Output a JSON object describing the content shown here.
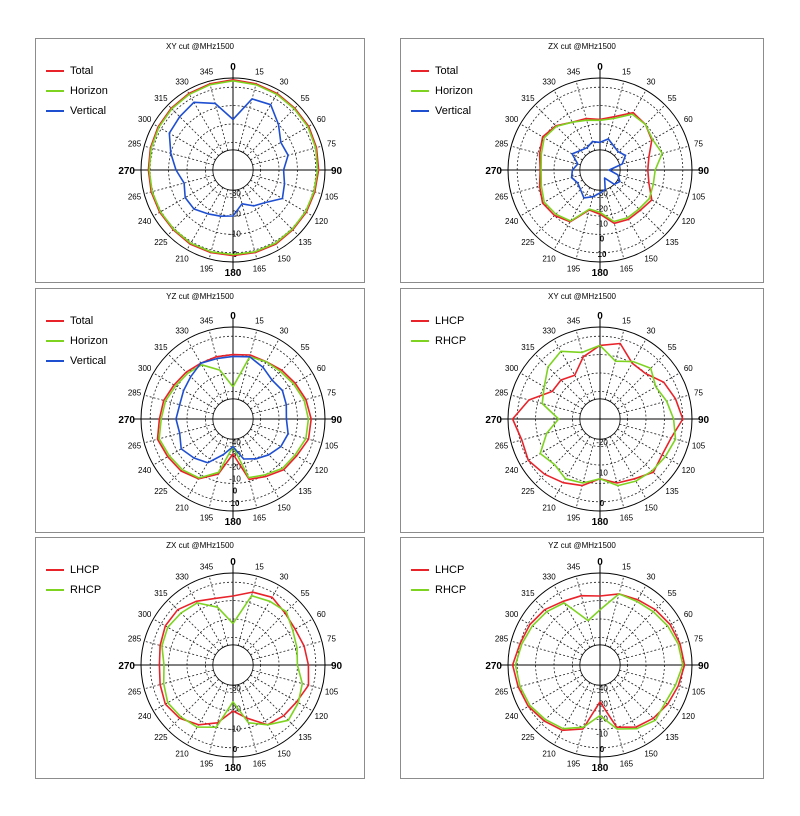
{
  "colors": {
    "Total": "#e8232a",
    "Horizon": "#7ed321",
    "Vertical": "#1f4fd1",
    "LHCP": "#e8232a",
    "RHCP": "#7ed321"
  },
  "angle_labels": [
    "0",
    "15",
    "30",
    "55",
    "60",
    "75",
    "90",
    "105",
    "120",
    "135",
    "150",
    "165",
    "180",
    "195",
    "210",
    "225",
    "240",
    "265",
    "270",
    "285",
    "300",
    "315",
    "330",
    "345"
  ],
  "chart_data": [
    {
      "type": "polar",
      "title": "XY cut @MHz1500",
      "radial_ticks": [
        "-30",
        "-20",
        "-10",
        "0"
      ],
      "series": [
        {
          "name": "Total",
          "values": [
            0.98,
            0.97,
            0.96,
            0.95,
            0.95,
            0.94,
            0.93,
            0.92,
            0.92,
            0.92,
            0.93,
            0.93,
            0.93,
            0.93,
            0.93,
            0.92,
            0.92,
            0.92,
            0.92,
            0.93,
            0.94,
            0.95,
            0.96,
            0.97
          ]
        },
        {
          "name": "Horizon",
          "values": [
            0.97,
            0.96,
            0.95,
            0.94,
            0.94,
            0.93,
            0.92,
            0.91,
            0.91,
            0.91,
            0.92,
            0.92,
            0.92,
            0.92,
            0.92,
            0.91,
            0.91,
            0.91,
            0.91,
            0.92,
            0.93,
            0.94,
            0.95,
            0.96
          ]
        },
        {
          "name": "Vertical",
          "values": [
            0.55,
            0.8,
            0.82,
            0.7,
            0.6,
            0.62,
            0.55,
            0.58,
            0.62,
            0.5,
            0.45,
            0.38,
            0.5,
            0.52,
            0.55,
            0.6,
            0.6,
            0.55,
            0.62,
            0.7,
            0.8,
            0.82,
            0.85,
            0.75
          ]
        }
      ]
    },
    {
      "type": "polar",
      "title": "ZX cut @MHz1500",
      "radial_ticks": [
        "-30",
        "-20",
        "-10",
        "0",
        "10"
      ],
      "series": [
        {
          "name": "Total",
          "values": [
            0.55,
            0.6,
            0.72,
            0.7,
            0.65,
            0.55,
            0.52,
            0.55,
            0.65,
            0.62,
            0.62,
            0.6,
            0.48,
            0.45,
            0.65,
            0.7,
            0.72,
            0.68,
            0.65,
            0.68,
            0.72,
            0.68,
            0.6,
            0.58
          ]
        },
        {
          "name": "Horizon",
          "values": [
            0.54,
            0.58,
            0.7,
            0.7,
            0.66,
            0.7,
            0.6,
            0.6,
            0.62,
            0.6,
            0.6,
            0.58,
            0.46,
            0.44,
            0.64,
            0.68,
            0.7,
            0.66,
            0.64,
            0.66,
            0.7,
            0.67,
            0.6,
            0.56
          ]
        },
        {
          "name": "Vertical",
          "values": [
            0.3,
            0.35,
            0.3,
            0.28,
            0.32,
            0.25,
            0.1,
            0.2,
            0.25,
            0.22,
            0.1,
            0.22,
            0.25,
            0.3,
            0.35,
            0.3,
            0.28,
            0.32,
            0.3,
            0.25,
            0.35,
            0.3,
            0.28,
            0.32
          ]
        }
      ]
    },
    {
      "type": "polar",
      "title": "YZ cut @MHz1500",
      "radial_ticks": [
        "-40",
        "-30",
        "-20",
        "-10",
        "0",
        "10"
      ],
      "series": [
        {
          "name": "Total",
          "values": [
            0.7,
            0.72,
            0.72,
            0.75,
            0.78,
            0.82,
            0.85,
            0.85,
            0.8,
            0.78,
            0.72,
            0.68,
            0.38,
            0.62,
            0.75,
            0.8,
            0.82,
            0.85,
            0.8,
            0.78,
            0.74,
            0.72,
            0.7,
            0.7
          ]
        },
        {
          "name": "Horizon",
          "values": [
            0.35,
            0.7,
            0.72,
            0.73,
            0.76,
            0.8,
            0.82,
            0.82,
            0.78,
            0.76,
            0.7,
            0.66,
            0.3,
            0.6,
            0.74,
            0.78,
            0.8,
            0.83,
            0.78,
            0.76,
            0.72,
            0.7,
            0.68,
            0.55
          ]
        },
        {
          "name": "Vertical",
          "values": [
            0.68,
            0.7,
            0.65,
            0.6,
            0.62,
            0.6,
            0.58,
            0.62,
            0.6,
            0.55,
            0.5,
            0.45,
            0.3,
            0.4,
            0.55,
            0.6,
            0.65,
            0.6,
            0.62,
            0.6,
            0.62,
            0.65,
            0.7,
            0.68
          ]
        }
      ]
    },
    {
      "type": "polar",
      "title": "XY cut @MHz1500",
      "radial_ticks": [
        "-20",
        "-10",
        "0"
      ],
      "series": [
        {
          "name": "LHCP",
          "values": [
            0.8,
            0.85,
            0.7,
            0.7,
            0.8,
            0.85,
            0.9,
            0.8,
            0.78,
            0.82,
            0.75,
            0.72,
            0.65,
            0.75,
            0.8,
            0.85,
            0.9,
            0.88,
            0.95,
            0.8,
            0.6,
            0.6,
            0.55,
            0.7
          ]
        },
        {
          "name": "RHCP",
          "values": [
            0.8,
            0.65,
            0.72,
            0.78,
            0.7,
            0.75,
            0.8,
            0.85,
            0.82,
            0.8,
            0.78,
            0.75,
            0.65,
            0.72,
            0.75,
            0.7,
            0.75,
            0.6,
            0.45,
            0.65,
            0.7,
            0.8,
            0.85,
            0.75
          ]
        }
      ]
    },
    {
      "type": "polar",
      "title": "ZX cut @MHz1500",
      "radial_ticks": [
        "-30",
        "-20",
        "-10",
        "0"
      ],
      "series": [
        {
          "name": "LHCP",
          "values": [
            0.75,
            0.82,
            0.85,
            0.8,
            0.78,
            0.8,
            0.82,
            0.85,
            0.8,
            0.78,
            0.75,
            0.6,
            0.5,
            0.65,
            0.75,
            0.82,
            0.85,
            0.82,
            0.8,
            0.82,
            0.85,
            0.85,
            0.8,
            0.75
          ]
        },
        {
          "name": "RHCP",
          "values": [
            0.45,
            0.78,
            0.8,
            0.82,
            0.75,
            0.72,
            0.7,
            0.78,
            0.82,
            0.85,
            0.75,
            0.65,
            0.4,
            0.7,
            0.78,
            0.8,
            0.82,
            0.78,
            0.75,
            0.8,
            0.82,
            0.8,
            0.78,
            0.65
          ]
        }
      ]
    },
    {
      "type": "polar",
      "title": "YZ cut @MHz1500",
      "radial_ticks": [
        "-40",
        "-30",
        "-20",
        "-10",
        "0"
      ],
      "series": [
        {
          "name": "LHCP",
          "values": [
            0.75,
            0.8,
            0.82,
            0.85,
            0.88,
            0.9,
            0.92,
            0.88,
            0.85,
            0.82,
            0.78,
            0.7,
            0.4,
            0.72,
            0.82,
            0.86,
            0.9,
            0.92,
            0.95,
            0.9,
            0.88,
            0.85,
            0.8,
            0.78
          ]
        },
        {
          "name": "RHCP",
          "values": [
            0.6,
            0.8,
            0.8,
            0.82,
            0.85,
            0.88,
            0.9,
            0.85,
            0.82,
            0.85,
            0.8,
            0.72,
            0.55,
            0.7,
            0.8,
            0.84,
            0.88,
            0.9,
            0.92,
            0.88,
            0.85,
            0.82,
            0.78,
            0.5
          ]
        }
      ]
    }
  ]
}
